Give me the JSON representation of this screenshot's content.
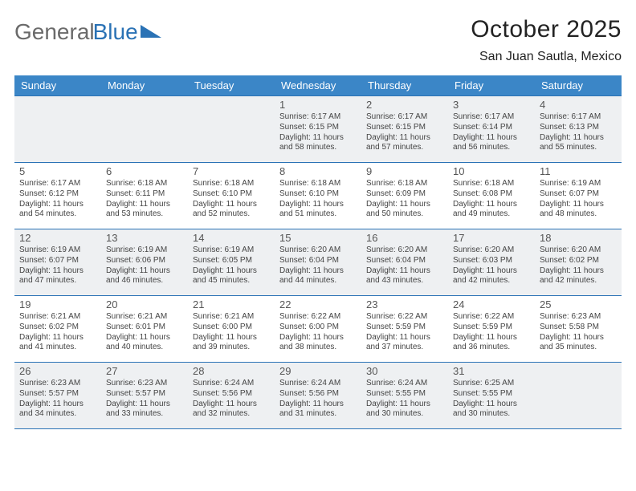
{
  "logo": {
    "part1": "General",
    "part2": "Blue"
  },
  "title": "October 2025",
  "location": "San Juan Sautla, Mexico",
  "colors": {
    "header_bg": "#3b86c7",
    "rule": "#2a72b5",
    "odd_bg": "#eef0f2",
    "even_bg": "#ffffff",
    "logo_gray": "#6a6a6a",
    "logo_blue": "#2a72b5"
  },
  "day_names": [
    "Sunday",
    "Monday",
    "Tuesday",
    "Wednesday",
    "Thursday",
    "Friday",
    "Saturday"
  ],
  "weeks": [
    [
      {
        "n": "",
        "sr": "",
        "ss": "",
        "dl": ""
      },
      {
        "n": "",
        "sr": "",
        "ss": "",
        "dl": ""
      },
      {
        "n": "",
        "sr": "",
        "ss": "",
        "dl": ""
      },
      {
        "n": "1",
        "sr": "Sunrise: 6:17 AM",
        "ss": "Sunset: 6:15 PM",
        "dl": "Daylight: 11 hours and 58 minutes."
      },
      {
        "n": "2",
        "sr": "Sunrise: 6:17 AM",
        "ss": "Sunset: 6:15 PM",
        "dl": "Daylight: 11 hours and 57 minutes."
      },
      {
        "n": "3",
        "sr": "Sunrise: 6:17 AM",
        "ss": "Sunset: 6:14 PM",
        "dl": "Daylight: 11 hours and 56 minutes."
      },
      {
        "n": "4",
        "sr": "Sunrise: 6:17 AM",
        "ss": "Sunset: 6:13 PM",
        "dl": "Daylight: 11 hours and 55 minutes."
      }
    ],
    [
      {
        "n": "5",
        "sr": "Sunrise: 6:17 AM",
        "ss": "Sunset: 6:12 PM",
        "dl": "Daylight: 11 hours and 54 minutes."
      },
      {
        "n": "6",
        "sr": "Sunrise: 6:18 AM",
        "ss": "Sunset: 6:11 PM",
        "dl": "Daylight: 11 hours and 53 minutes."
      },
      {
        "n": "7",
        "sr": "Sunrise: 6:18 AM",
        "ss": "Sunset: 6:10 PM",
        "dl": "Daylight: 11 hours and 52 minutes."
      },
      {
        "n": "8",
        "sr": "Sunrise: 6:18 AM",
        "ss": "Sunset: 6:10 PM",
        "dl": "Daylight: 11 hours and 51 minutes."
      },
      {
        "n": "9",
        "sr": "Sunrise: 6:18 AM",
        "ss": "Sunset: 6:09 PM",
        "dl": "Daylight: 11 hours and 50 minutes."
      },
      {
        "n": "10",
        "sr": "Sunrise: 6:18 AM",
        "ss": "Sunset: 6:08 PM",
        "dl": "Daylight: 11 hours and 49 minutes."
      },
      {
        "n": "11",
        "sr": "Sunrise: 6:19 AM",
        "ss": "Sunset: 6:07 PM",
        "dl": "Daylight: 11 hours and 48 minutes."
      }
    ],
    [
      {
        "n": "12",
        "sr": "Sunrise: 6:19 AM",
        "ss": "Sunset: 6:07 PM",
        "dl": "Daylight: 11 hours and 47 minutes."
      },
      {
        "n": "13",
        "sr": "Sunrise: 6:19 AM",
        "ss": "Sunset: 6:06 PM",
        "dl": "Daylight: 11 hours and 46 minutes."
      },
      {
        "n": "14",
        "sr": "Sunrise: 6:19 AM",
        "ss": "Sunset: 6:05 PM",
        "dl": "Daylight: 11 hours and 45 minutes."
      },
      {
        "n": "15",
        "sr": "Sunrise: 6:20 AM",
        "ss": "Sunset: 6:04 PM",
        "dl": "Daylight: 11 hours and 44 minutes."
      },
      {
        "n": "16",
        "sr": "Sunrise: 6:20 AM",
        "ss": "Sunset: 6:04 PM",
        "dl": "Daylight: 11 hours and 43 minutes."
      },
      {
        "n": "17",
        "sr": "Sunrise: 6:20 AM",
        "ss": "Sunset: 6:03 PM",
        "dl": "Daylight: 11 hours and 42 minutes."
      },
      {
        "n": "18",
        "sr": "Sunrise: 6:20 AM",
        "ss": "Sunset: 6:02 PM",
        "dl": "Daylight: 11 hours and 42 minutes."
      }
    ],
    [
      {
        "n": "19",
        "sr": "Sunrise: 6:21 AM",
        "ss": "Sunset: 6:02 PM",
        "dl": "Daylight: 11 hours and 41 minutes."
      },
      {
        "n": "20",
        "sr": "Sunrise: 6:21 AM",
        "ss": "Sunset: 6:01 PM",
        "dl": "Daylight: 11 hours and 40 minutes."
      },
      {
        "n": "21",
        "sr": "Sunrise: 6:21 AM",
        "ss": "Sunset: 6:00 PM",
        "dl": "Daylight: 11 hours and 39 minutes."
      },
      {
        "n": "22",
        "sr": "Sunrise: 6:22 AM",
        "ss": "Sunset: 6:00 PM",
        "dl": "Daylight: 11 hours and 38 minutes."
      },
      {
        "n": "23",
        "sr": "Sunrise: 6:22 AM",
        "ss": "Sunset: 5:59 PM",
        "dl": "Daylight: 11 hours and 37 minutes."
      },
      {
        "n": "24",
        "sr": "Sunrise: 6:22 AM",
        "ss": "Sunset: 5:59 PM",
        "dl": "Daylight: 11 hours and 36 minutes."
      },
      {
        "n": "25",
        "sr": "Sunrise: 6:23 AM",
        "ss": "Sunset: 5:58 PM",
        "dl": "Daylight: 11 hours and 35 minutes."
      }
    ],
    [
      {
        "n": "26",
        "sr": "Sunrise: 6:23 AM",
        "ss": "Sunset: 5:57 PM",
        "dl": "Daylight: 11 hours and 34 minutes."
      },
      {
        "n": "27",
        "sr": "Sunrise: 6:23 AM",
        "ss": "Sunset: 5:57 PM",
        "dl": "Daylight: 11 hours and 33 minutes."
      },
      {
        "n": "28",
        "sr": "Sunrise: 6:24 AM",
        "ss": "Sunset: 5:56 PM",
        "dl": "Daylight: 11 hours and 32 minutes."
      },
      {
        "n": "29",
        "sr": "Sunrise: 6:24 AM",
        "ss": "Sunset: 5:56 PM",
        "dl": "Daylight: 11 hours and 31 minutes."
      },
      {
        "n": "30",
        "sr": "Sunrise: 6:24 AM",
        "ss": "Sunset: 5:55 PM",
        "dl": "Daylight: 11 hours and 30 minutes."
      },
      {
        "n": "31",
        "sr": "Sunrise: 6:25 AM",
        "ss": "Sunset: 5:55 PM",
        "dl": "Daylight: 11 hours and 30 minutes."
      },
      {
        "n": "",
        "sr": "",
        "ss": "",
        "dl": ""
      }
    ]
  ]
}
